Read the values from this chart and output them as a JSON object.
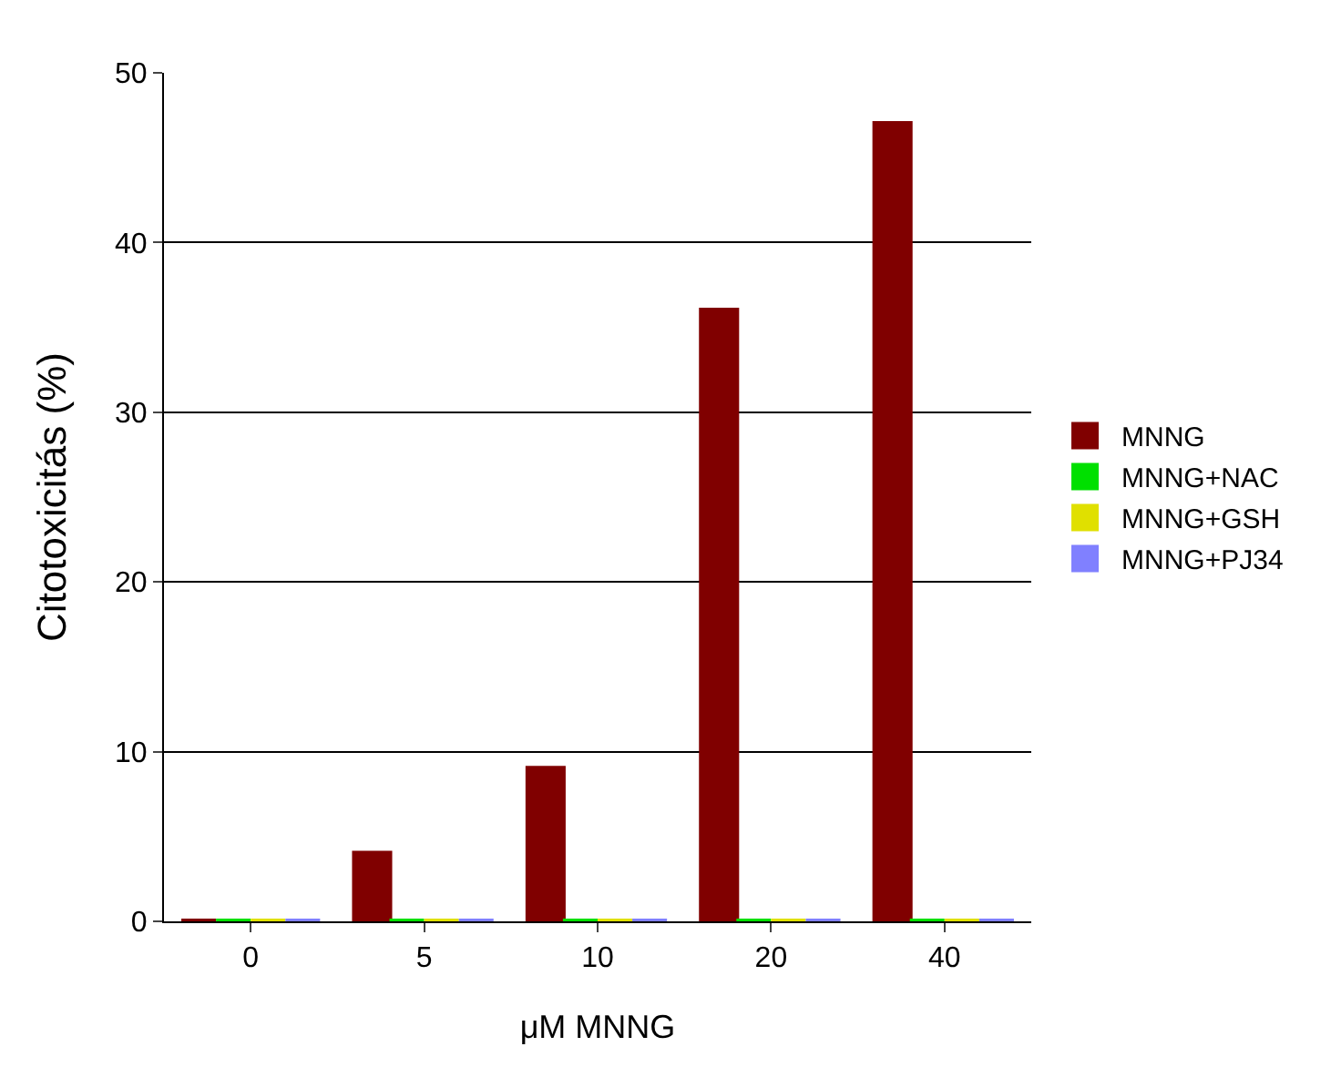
{
  "chart_data": {
    "type": "bar",
    "xlabel": "μM MNNG",
    "ylabel": "Citotoxicitás (%)",
    "categories": [
      "0",
      "5",
      "10",
      "20",
      "40"
    ],
    "series": [
      {
        "name": "MNNG",
        "color": "#800000",
        "values": [
          0,
          4,
          9,
          36,
          47
        ]
      },
      {
        "name": "MNNG+NAC",
        "color": "#00e000",
        "values": [
          0,
          0,
          0,
          0,
          0
        ]
      },
      {
        "name": "MNNG+GSH",
        "color": "#e0e000",
        "values": [
          0,
          0,
          0,
          0,
          0
        ]
      },
      {
        "name": "MNNG+PJ34",
        "color": "#8080ff",
        "values": [
          0,
          0,
          0,
          0,
          0
        ]
      }
    ],
    "ylim": [
      0,
      50
    ],
    "yticks": [
      0,
      10,
      20,
      30,
      40,
      50
    ],
    "grid": "y",
    "legend": "right"
  }
}
